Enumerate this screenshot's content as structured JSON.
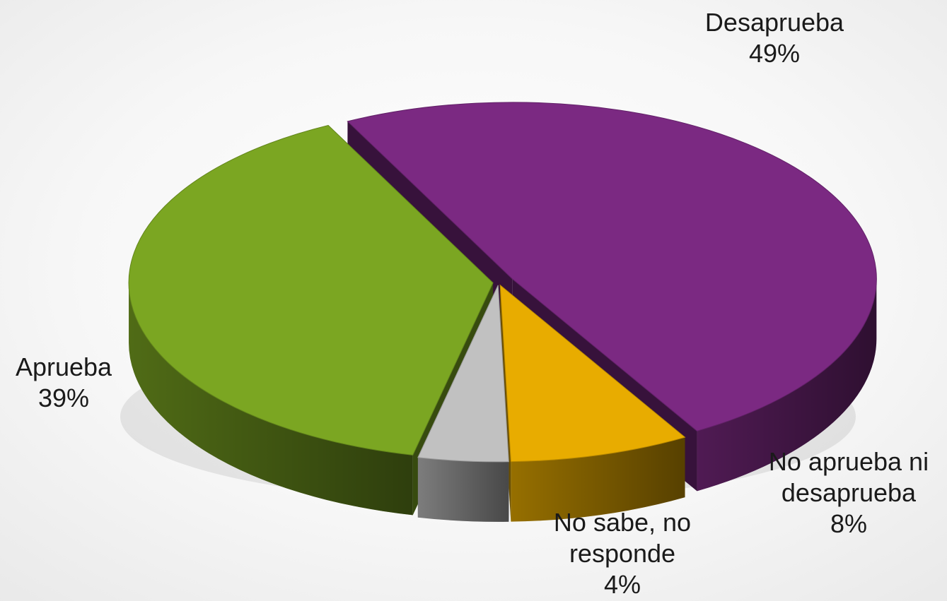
{
  "chart_data": {
    "type": "pie",
    "style": "3d-exploded",
    "title": "",
    "slices": [
      {
        "label": "Desaprueba",
        "label_lines": [
          "Desaprueba"
        ],
        "percent_label": "49%",
        "value": 49,
        "color": "#7b2982",
        "label_placement": "top-right"
      },
      {
        "label": "No aprueba ni desaprueba",
        "label_lines": [
          "No aprueba ni",
          "desaprueba"
        ],
        "percent_label": "8%",
        "value": 8,
        "color": "#e8ac00",
        "label_placement": "bottom-right"
      },
      {
        "label": "No sabe, no responde",
        "label_lines": [
          "No sabe, no",
          "responde"
        ],
        "percent_label": "4%",
        "value": 4,
        "color": "#c1c1c1",
        "label_placement": "bottom"
      },
      {
        "label": "Aprueba",
        "label_lines": [
          "Aprueba"
        ],
        "percent_label": "39%",
        "value": 39,
        "color": "#7ba622",
        "label_placement": "left"
      }
    ],
    "legend": "none"
  }
}
